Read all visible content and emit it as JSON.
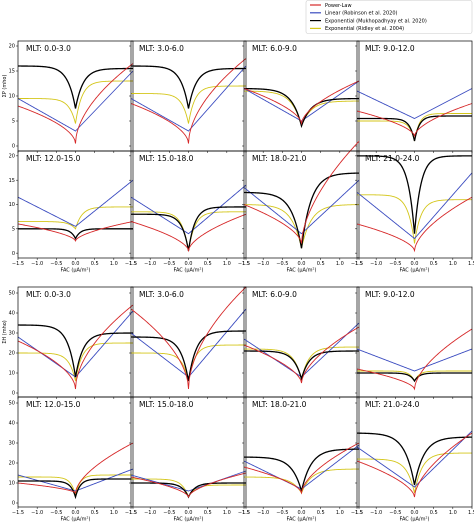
{
  "legend": {
    "entries": [
      {
        "label": "Power-Law",
        "color": "#d62728"
      },
      {
        "label": "Linear (Robinson et al. 2020)",
        "color": "#3b4cc0"
      },
      {
        "label": "Exponential (Mukhopadhyay et al. 2020)",
        "color": "#000000"
      },
      {
        "label": "Exponential (Ridley et al. 2004)",
        "color": "#d4c61a"
      }
    ]
  },
  "chart_data": {
    "type": "line",
    "x_range": [
      -1.5,
      1.5
    ],
    "x_ticks": [
      "-1.5",
      "-1.0",
      "-0.5",
      "0.0",
      "0.5",
      "1.0",
      "1.5"
    ],
    "xlabel": "FAC (μA/m²)",
    "sections": [
      {
        "ylabel": "ΣP (mho)",
        "ylim": [
          -1,
          21
        ],
        "y_ticks": [
          0,
          5,
          10,
          15,
          20
        ],
        "panels": [
          {
            "title": "MLT: 0.0-3.0",
            "power": {
              "v0": 0.5,
              "aN": 7.5,
              "aP": 16,
              "p": 0.55
            },
            "linear": {
              "v0": 3,
              "aN": 6.5,
              "aP": 12
            },
            "mukh": {
              "v0": 7.5,
              "mN": 16,
              "mP": 15.5,
              "k": 5
            },
            "ridley": {
              "v0": 4.5,
              "mN": 9.5,
              "mP": 13,
              "k": 6
            }
          },
          {
            "title": "MLT: 3.0-6.0",
            "power": {
              "v0": 0.5,
              "aN": 8,
              "aP": 17,
              "p": 0.55
            },
            "linear": {
              "v0": 3,
              "aN": 6.5,
              "aP": 13
            },
            "mukh": {
              "v0": 7.5,
              "mN": 16,
              "mP": 15.5,
              "k": 5
            },
            "ridley": {
              "v0": 4.5,
              "mN": 10.5,
              "mP": 12,
              "k": 6
            }
          },
          {
            "title": "MLT: 6.0-9.0",
            "power": {
              "v0": 4.5,
              "aN": 7,
              "aP": 8.5,
              "p": 0.6
            },
            "linear": {
              "v0": 5,
              "aN": 6.5,
              "aP": 8
            },
            "mukh": {
              "v0": 4,
              "mN": 11.5,
              "mP": 9.5,
              "k": 4
            },
            "ridley": {
              "v0": 4,
              "mN": 11,
              "mP": 9,
              "k": 4
            }
          },
          {
            "title": "MLT: 9.0-12.0",
            "power": {
              "v0": 2,
              "aN": 5,
              "aP": 6.5,
              "p": 0.6
            },
            "linear": {
              "v0": 5.5,
              "aN": 5.5,
              "aP": 6
            },
            "mukh": {
              "v0": 1,
              "mN": 5.5,
              "mP": 6,
              "k": 8
            },
            "ridley": {
              "v0": 1,
              "mN": 5,
              "mP": 6.5,
              "k": 8
            }
          },
          {
            "title": "MLT: 12.0-15.0",
            "power": {
              "v0": 2.5,
              "aN": 3.5,
              "aP": 4,
              "p": 0.6
            },
            "linear": {
              "v0": 5.5,
              "aN": 6,
              "aP": 9.5
            },
            "mukh": {
              "v0": 3,
              "mN": 5,
              "mP": 5,
              "k": 8
            },
            "ridley": {
              "v0": 5,
              "mN": 6.5,
              "mP": 9.5,
              "k": 6
            }
          },
          {
            "title": "MLT: 15.0-18.0",
            "power": {
              "v0": 0.5,
              "aN": 6,
              "aP": 7.5,
              "p": 0.6
            },
            "linear": {
              "v0": 4,
              "aN": 7.5,
              "aP": 10
            },
            "mukh": {
              "v0": 0.5,
              "mN": 8,
              "mP": 9.5,
              "k": 6
            },
            "ridley": {
              "v0": 0.5,
              "mN": 8.5,
              "mP": 8.5,
              "k": 6
            }
          },
          {
            "title": "MLT: 18.0-21.0",
            "power": {
              "v0": 2,
              "aN": 8,
              "aP": 21,
              "p": 0.6
            },
            "linear": {
              "v0": 4,
              "aN": 9.5,
              "aP": 11
            },
            "mukh": {
              "v0": 1,
              "mN": 12.5,
              "mP": 16.5,
              "k": 4
            },
            "ridley": {
              "v0": 1,
              "mN": 10,
              "mP": 10,
              "k": 4
            }
          },
          {
            "title": "MLT: 21.0-24.0",
            "power": {
              "v0": 0.5,
              "aN": 5.5,
              "aP": 11,
              "p": 0.6
            },
            "linear": {
              "v0": 3,
              "aN": 9.5,
              "aP": 13.5
            },
            "mukh": {
              "v0": 4,
              "mN": 20,
              "mP": 20,
              "k": 6
            },
            "ridley": {
              "v0": 2,
              "mN": 12,
              "mP": 11,
              "k": 6
            }
          }
        ]
      },
      {
        "ylabel": "ΣH (mho)",
        "ylim": [
          -2,
          53
        ],
        "y_ticks": [
          0,
          10,
          20,
          30,
          40,
          50
        ],
        "panels": [
          {
            "title": "MLT: 0.0-3.0",
            "power": {
              "v0": 2,
              "aN": 24,
              "aP": 42,
              "p": 0.55
            },
            "linear": {
              "v0": 8,
              "aN": 20,
              "aP": 33
            },
            "mukh": {
              "v0": 8,
              "mN": 34,
              "mP": 30,
              "k": 5
            },
            "ridley": {
              "v0": 6,
              "mN": 20,
              "mP": 25,
              "k": 6
            }
          },
          {
            "title": "MLT: 3.0-6.0",
            "power": {
              "v0": 2,
              "aN": 40,
              "aP": 51,
              "p": 0.55
            },
            "linear": {
              "v0": 8,
              "aN": 22,
              "aP": 34
            },
            "mukh": {
              "v0": 6,
              "mN": 28,
              "mP": 31,
              "k": 5
            },
            "ridley": {
              "v0": 6,
              "mN": 20,
              "mP": 24,
              "k": 6
            }
          },
          {
            "title": "MLT: 6.0-9.0",
            "power": {
              "v0": 5,
              "aN": 19,
              "aP": 28,
              "p": 0.6
            },
            "linear": {
              "v0": 8,
              "aN": 19,
              "aP": 27
            },
            "mukh": {
              "v0": 7,
              "mN": 21,
              "mP": 21,
              "k": 5
            },
            "ridley": {
              "v0": 7,
              "mN": 22,
              "mP": 23,
              "k": 5
            }
          },
          {
            "title": "MLT: 9.0-12.0",
            "power": {
              "v0": 2,
              "aN": 10,
              "aP": 30,
              "p": 0.6
            },
            "linear": {
              "v0": 11,
              "aN": 11,
              "aP": 11
            },
            "mukh": {
              "v0": 6,
              "mN": 10,
              "mP": 10,
              "k": 8
            },
            "ridley": {
              "v0": 6,
              "mN": 11,
              "mP": 11,
              "k": 8
            }
          },
          {
            "title": "MLT: 12.0-15.0",
            "power": {
              "v0": 5,
              "aN": 5,
              "aP": 25,
              "p": 0.6
            },
            "linear": {
              "v0": 6,
              "aN": 8,
              "aP": 11
            },
            "mukh": {
              "v0": 3,
              "mN": 11,
              "mP": 12,
              "k": 8
            },
            "ridley": {
              "v0": 4,
              "mN": 13,
              "mP": 14,
              "k": 8
            }
          },
          {
            "title": "MLT: 15.0-18.0",
            "power": {
              "v0": 3,
              "aN": 10,
              "aP": 12,
              "p": 0.6
            },
            "linear": {
              "v0": 6,
              "aN": 8,
              "aP": 10
            },
            "mukh": {
              "v0": 3,
              "mN": 10,
              "mP": 10,
              "k": 6
            },
            "ridley": {
              "v0": 3,
              "mN": 12,
              "mP": 9,
              "k": 6
            }
          },
          {
            "title": "MLT: 18.0-21.0",
            "power": {
              "v0": 5,
              "aN": 13,
              "aP": 25,
              "p": 0.6
            },
            "linear": {
              "v0": 7,
              "aN": 14,
              "aP": 22
            },
            "mukh": {
              "v0": 6,
              "mN": 23,
              "mP": 27,
              "k": 4
            },
            "ridley": {
              "v0": 5,
              "mN": 13,
              "mP": 17,
              "k": 4
            }
          },
          {
            "title": "MLT: 21.0-24.0",
            "power": {
              "v0": 3,
              "aN": 18,
              "aP": 32,
              "p": 0.6
            },
            "linear": {
              "v0": 8,
              "aN": 20,
              "aP": 28
            },
            "mukh": {
              "v0": 9,
              "mN": 35,
              "mP": 33,
              "k": 4
            },
            "ridley": {
              "v0": 5,
              "mN": 22,
              "mP": 25,
              "k": 5
            }
          }
        ]
      }
    ]
  }
}
